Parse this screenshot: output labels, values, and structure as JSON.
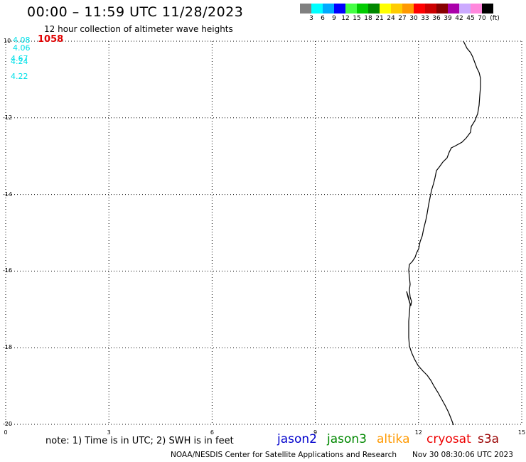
{
  "title": "00:00 – 11:59 UTC 11/28/2023",
  "subtitle": "12 hour collection of altimeter wave heights",
  "legend": {
    "colors": [
      "#808080",
      "#00ffff",
      "#00aaff",
      "#0000ff",
      "#44ff44",
      "#00cc00",
      "#008800",
      "#ffff00",
      "#ffcc00",
      "#ff9900",
      "#ff0000",
      "#cc0000",
      "#880000",
      "#aa00aa",
      "#ccaaff",
      "#ff88dd",
      "#000000"
    ],
    "labels": [
      "3",
      "6",
      "9",
      "12",
      "15",
      "18",
      "21",
      "24",
      "27",
      "30",
      "33",
      "36",
      "39",
      "42",
      "45",
      "70",
      "(ft)"
    ]
  },
  "map": {
    "lat_labels": [
      "10",
      "-12",
      "-14",
      "-16",
      "-18",
      "-20"
    ],
    "lon_labels": [
      "0",
      "3",
      "6",
      "9",
      "12",
      "15"
    ],
    "lat_range": [
      -20,
      -10
    ],
    "lon_range": [
      0,
      15
    ]
  },
  "observations": [
    "4.08",
    "4.06",
    "4.67",
    "4.24",
    "4.22"
  ],
  "observation_count": "1058",
  "note": "note: 1) Time is in UTC; 2) SWH is in feet",
  "satellites": [
    {
      "name": "jason2",
      "color": "#0000cc"
    },
    {
      "name": "jason3",
      "color": "#008800"
    },
    {
      "name": "altika",
      "color": "#ff9900"
    },
    {
      "name": "cryosat",
      "color": "#ee0000"
    },
    {
      "name": "s3a",
      "color": "#990000"
    }
  ],
  "credit": "NOAA/NESDIS Center for Satellite Applications and Research",
  "generated": "Nov 30 08:30:06 UTC 2023"
}
